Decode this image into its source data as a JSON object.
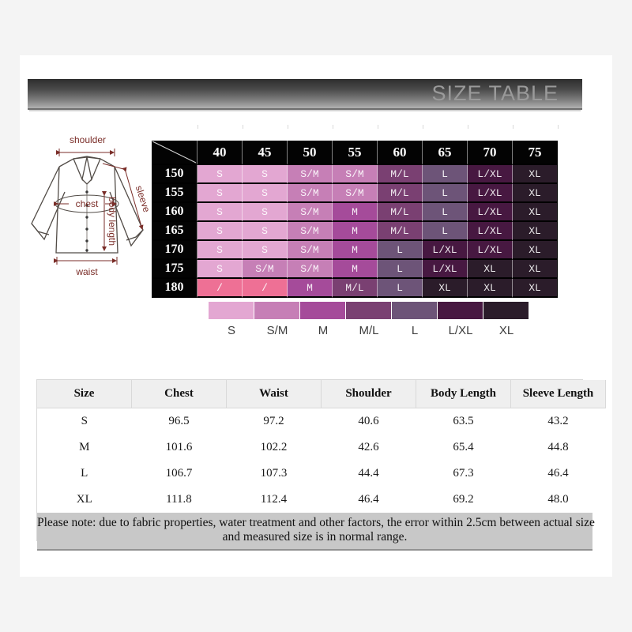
{
  "header": {
    "title": "SIZE TABLE"
  },
  "diagram": {
    "labels": {
      "shoulder": "shoulder",
      "chest": "chest",
      "sleeve": "sleeve",
      "body_length": "body length",
      "waist": "waist"
    }
  },
  "size_matrix": {
    "col_headers": [
      "40",
      "45",
      "50",
      "55",
      "60",
      "65",
      "70",
      "75"
    ],
    "rows": [
      {
        "height": "150",
        "cells": [
          "S",
          "S",
          "S/M",
          "S/M",
          "M/L",
          "L",
          "L/XL",
          "XL"
        ]
      },
      {
        "height": "155",
        "cells": [
          "S",
          "S",
          "S/M",
          "S/M",
          "M/L",
          "L",
          "L/XL",
          "XL"
        ]
      },
      {
        "height": "160",
        "cells": [
          "S",
          "S",
          "S/M",
          "M",
          "M/L",
          "L",
          "L/XL",
          "XL"
        ]
      },
      {
        "height": "165",
        "cells": [
          "S",
          "S",
          "S/M",
          "M",
          "M/L",
          "L",
          "L/XL",
          "XL"
        ]
      },
      {
        "height": "170",
        "cells": [
          "S",
          "S",
          "S/M",
          "M",
          "L",
          "L/XL",
          "L/XL",
          "XL"
        ]
      },
      {
        "height": "175",
        "cells": [
          "S",
          "S/M",
          "S/M",
          "M",
          "L",
          "L/XL",
          "XL",
          "XL"
        ]
      },
      {
        "height": "180",
        "cells": [
          "/",
          "/",
          "M",
          "M/L",
          "L",
          "XL",
          "XL",
          "XL"
        ]
      }
    ],
    "colors": {
      "S": "#e3a7d2",
      "S/M": "#c67fb6",
      "M": "#a54b9a",
      "M/L": "#7a4072",
      "L": "#6d5478",
      "L/XL": "#471841",
      "XL": "#2b1c2a",
      "/": "#ee7095",
      "header_bg": "#030303"
    }
  },
  "legend": {
    "items": [
      {
        "label": "S",
        "color": "#e3a7d2"
      },
      {
        "label": "S/M",
        "color": "#c67fb6"
      },
      {
        "label": "M",
        "color": "#a54b9a"
      },
      {
        "label": "M/L",
        "color": "#7a4072"
      },
      {
        "label": "L",
        "color": "#6d5478"
      },
      {
        "label": "L/XL",
        "color": "#471841"
      },
      {
        "label": "XL",
        "color": "#2b1c2a"
      }
    ]
  },
  "measurements": {
    "columns": [
      "Size",
      "Chest",
      "Waist",
      "Shoulder",
      "Body Length",
      "Sleeve Length"
    ],
    "rows": [
      [
        "S",
        "96.5",
        "97.2",
        "40.6",
        "63.5",
        "43.2"
      ],
      [
        "M",
        "101.6",
        "102.2",
        "42.6",
        "65.4",
        "44.8"
      ],
      [
        "L",
        "106.7",
        "107.3",
        "44.4",
        "67.3",
        "46.4"
      ],
      [
        "XL",
        "111.8",
        "112.4",
        "46.4",
        "69.2",
        "48.0"
      ]
    ]
  },
  "note": {
    "line1": "Please note: due to fabric properties, water treatment and other factors, the error within 2.5cm between actual size",
    "line2": "and measured size is in normal range."
  }
}
